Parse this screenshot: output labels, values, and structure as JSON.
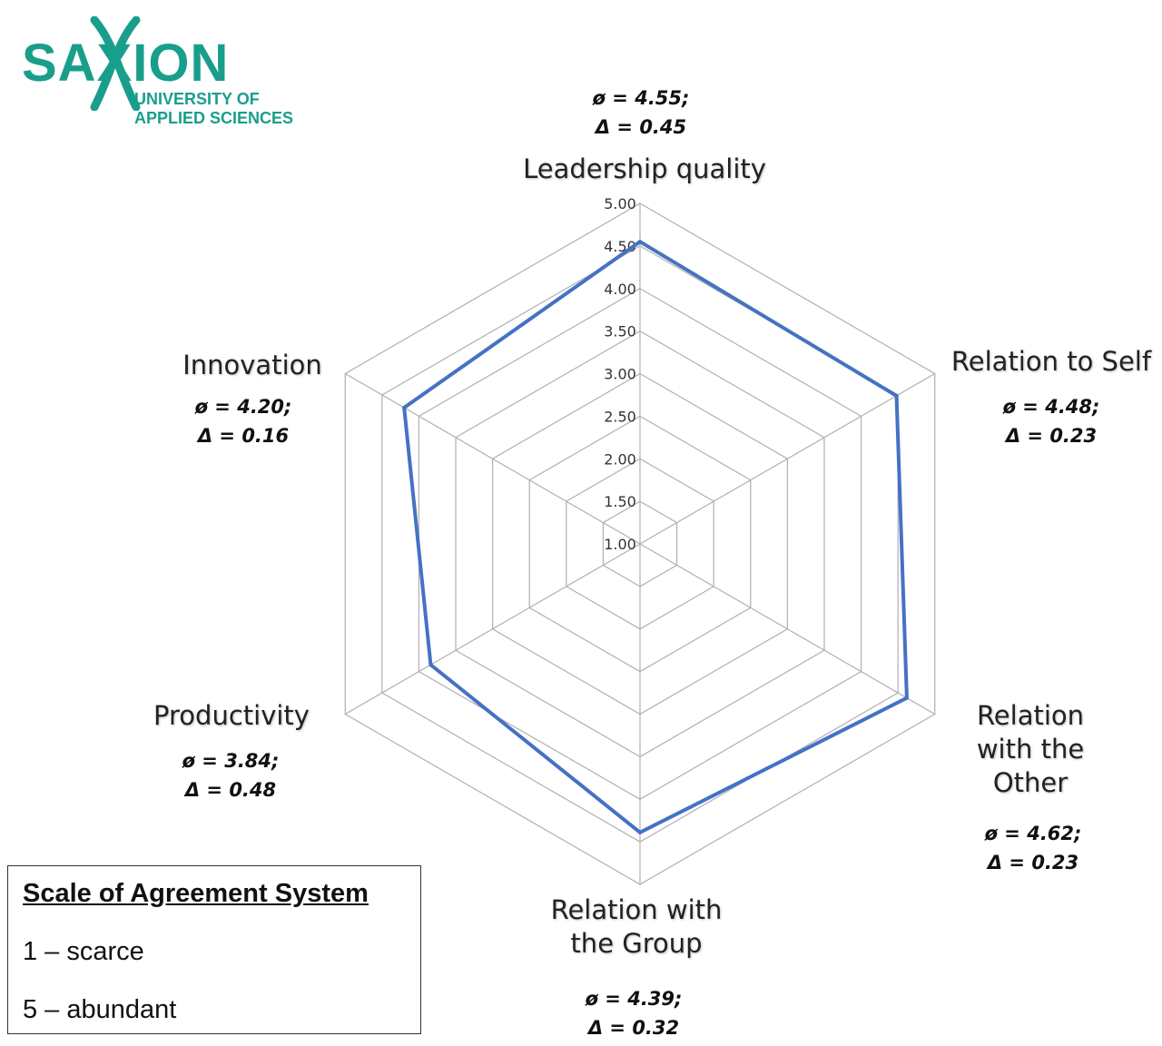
{
  "logo": {
    "word": "SAXION",
    "sub_line1": "UNIVERSITY OF",
    "sub_line2": "APPLIED SCIENCES",
    "color": "#1a9e8c"
  },
  "chart_data": {
    "type": "radar",
    "categories": [
      "Leadership quality",
      "Relation to Self",
      "Relation\nwith the\nOther",
      "Relation with\nthe  Group",
      "Productivity",
      "Innovation"
    ],
    "values": [
      4.55,
      4.48,
      4.62,
      4.39,
      3.84,
      4.2
    ],
    "stats": [
      {
        "mean": "ø = 4.55;",
        "delta": "Δ = 0.45"
      },
      {
        "mean": "ø = 4.48;",
        "delta": "Δ = 0.23"
      },
      {
        "mean": "ø = 4.62;",
        "delta": "Δ = 0.23"
      },
      {
        "mean": "ø = 4.39;",
        "delta": "Δ = 0.32"
      },
      {
        "mean": "ø = 3.84;",
        "delta": "Δ = 0.48"
      },
      {
        "mean": "ø = 4.20;",
        "delta": "Δ = 0.16"
      }
    ],
    "rlim": [
      1.0,
      5.0
    ],
    "ticks": [
      "1.00",
      "1.50",
      "2.00",
      "2.50",
      "3.00",
      "3.50",
      "4.00",
      "4.50",
      "5.00"
    ],
    "grid": true,
    "series_color": "#4472c4",
    "grid_color": "#b0b0b0"
  },
  "legend": {
    "title": "Scale of Agreement System",
    "items": [
      "1 – scarce",
      "5 – abundant"
    ]
  }
}
